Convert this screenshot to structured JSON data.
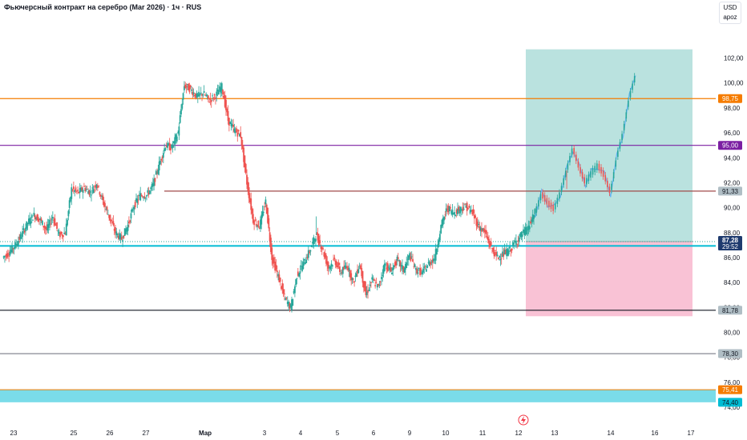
{
  "header": {
    "title": "Фьючерсный контракт на серебро (Mar 2026) · 1ч · RUS",
    "currency": "USD",
    "scale_mode": "apoz"
  },
  "chart_data": {
    "type": "candlestick",
    "ylim": [
      73.3,
      105.5
    ],
    "y_ticks": [
      74.0,
      76.0,
      78.0,
      80.0,
      82.0,
      84.0,
      86.0,
      88.0,
      90.0,
      92.0,
      94.0,
      96.0,
      98.0,
      100.0,
      102.0
    ],
    "x_labels": [
      "23",
      "25",
      "26",
      "27",
      "Мар",
      "3",
      "4",
      "5",
      "6",
      "9",
      "10",
      "11",
      "12",
      "13",
      "14",
      "16",
      "17"
    ],
    "price_path": [
      86.0,
      86.4,
      87.0,
      87.8,
      88.8,
      89.4,
      89.0,
      88.2,
      89.3,
      87.8,
      88.0,
      91.5,
      91.2,
      91.6,
      91.2,
      92.0,
      90.5,
      89.3,
      88.0,
      87.5,
      88.6,
      90.2,
      91.0,
      91.0,
      91.8,
      93.5,
      95.0,
      94.8,
      96.0,
      99.8,
      99.5,
      98.9,
      99.2,
      98.6,
      99.0,
      99.7,
      97.0,
      96.2,
      95.8,
      92.0,
      89.0,
      88.5,
      90.5,
      86.0,
      84.5,
      82.8,
      82.0,
      84.6,
      85.5,
      86.5,
      87.8,
      86.8,
      85.2,
      85.8,
      84.8,
      85.4,
      84.0,
      85.5,
      83.0,
      84.2,
      83.6,
      85.5,
      84.9,
      85.8,
      85.0,
      86.2,
      85.0,
      84.8,
      85.5,
      86.0,
      88.5,
      90.0,
      89.6,
      89.9,
      90.1,
      89.6,
      88.5,
      88.0,
      86.8,
      86.0,
      86.3,
      86.6,
      87.3,
      87.9,
      88.4,
      89.6,
      91.1,
      90.4,
      89.9,
      91.2,
      93.0,
      94.8,
      93.2,
      92.0,
      92.8,
      93.4,
      92.6,
      91.2,
      94.0,
      96.0,
      98.8,
      100.6
    ],
    "spikes": [
      [
        300,
        10
      ],
      [
        540,
        -10
      ]
    ],
    "horizontal_levels": [
      {
        "value": "98,75",
        "color": "#f57c00",
        "label_bg": "#f57c00"
      },
      {
        "value": "95,00",
        "color": "#7b1fa2",
        "label_bg": "#7b1fa2"
      },
      {
        "value": "91,33",
        "color": "#a04a4a",
        "label_bg": "#b0bec5"
      },
      {
        "value": "86,94",
        "color": "#00bcd4",
        "label_bg": "#00bcd4"
      },
      {
        "value": "81,78",
        "color": "#131722",
        "label_bg": "#b0bec5"
      },
      {
        "value": "78,30",
        "color": "#787b86",
        "label_bg": "#b0bec5"
      }
    ],
    "zone": {
      "value_low": "74,40",
      "value_high": "75,41",
      "color": "#4dd0e1",
      "label_bg_low": "#00bcd4",
      "label_bg_high": "#f57c00"
    },
    "position": {
      "entry": 87.28,
      "target": 102.7,
      "stop": 81.3
    },
    "last_price": {
      "value": "87,28",
      "countdown": "29:52"
    },
    "colors": {
      "up": "#26a69a",
      "down": "#ef5350",
      "projection": "#64b5f6",
      "profit": "#b2dfdb",
      "loss": "#f8bbd0"
    }
  }
}
